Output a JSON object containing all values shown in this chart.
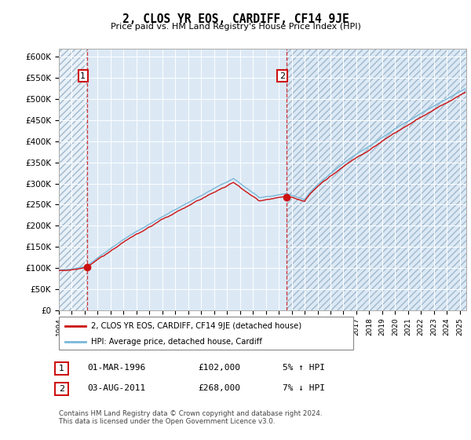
{
  "title": "2, CLOS YR EOS, CARDIFF, CF14 9JE",
  "subtitle": "Price paid vs. HM Land Registry's House Price Index (HPI)",
  "ylim": [
    0,
    620000
  ],
  "yticks": [
    0,
    50000,
    100000,
    150000,
    200000,
    250000,
    300000,
    350000,
    400000,
    450000,
    500000,
    550000,
    600000
  ],
  "ytick_labels": [
    "£0",
    "£50K",
    "£100K",
    "£150K",
    "£200K",
    "£250K",
    "£300K",
    "£350K",
    "£400K",
    "£450K",
    "£500K",
    "£550K",
    "£600K"
  ],
  "hpi_color": "#7ab8d9",
  "price_color": "#cc1111",
  "sale1_x": 1996.17,
  "sale1_y": 102000,
  "sale2_x": 2011.58,
  "sale2_y": 268000,
  "legend_label1": "2, CLOS YR EOS, CARDIFF, CF14 9JE (detached house)",
  "legend_label2": "HPI: Average price, detached house, Cardiff",
  "table_row1": [
    "1",
    "01-MAR-1996",
    "£102,000",
    "5% ↑ HPI"
  ],
  "table_row2": [
    "2",
    "03-AUG-2011",
    "£268,000",
    "7% ↓ HPI"
  ],
  "footer": "Contains HM Land Registry data © Crown copyright and database right 2024.\nThis data is licensed under the Open Government Licence v3.0.",
  "plot_bg": "#dce9f5",
  "hatch_bg": "#ccd9ea",
  "grid_color": "#ffffff",
  "xlim": [
    1994,
    2025.5
  ]
}
